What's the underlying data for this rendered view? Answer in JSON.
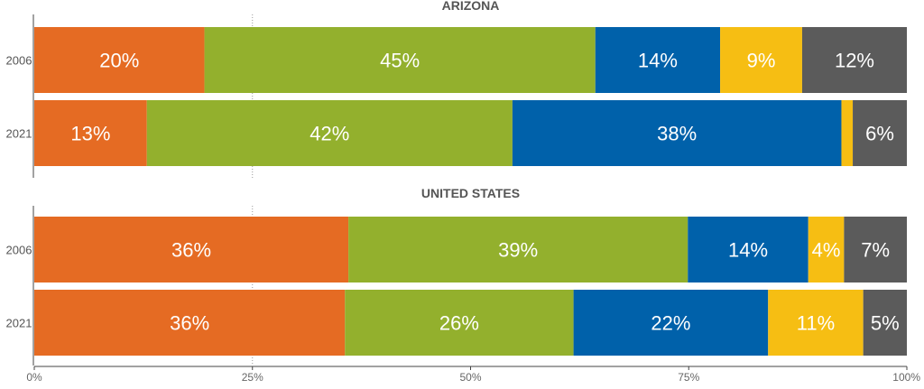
{
  "chart_data": {
    "type": "bar",
    "orientation": "horizontal",
    "stacked": true,
    "xlim": [
      0,
      100
    ],
    "x_ticks": [
      "0%",
      "25%",
      "50%",
      "75%",
      "100%"
    ],
    "colors": [
      "#E56B23",
      "#93B02D",
      "#0061AA",
      "#F6BE13",
      "#5B5B5B"
    ],
    "panels": [
      {
        "title": "ARIZONA",
        "rows": [
          {
            "label": "2006",
            "values": [
              19.5,
              44.8,
              14.3,
              9.4,
              12.0
            ],
            "labels": [
              "20%",
              "45%",
              "14%",
              "9%",
              "12%"
            ]
          },
          {
            "label": "2021",
            "values": [
              12.9,
              41.9,
              37.7,
              1.3,
              6.2
            ],
            "labels": [
              "13%",
              "42%",
              "38%",
              "",
              "6%"
            ]
          }
        ]
      },
      {
        "title": "UNITED STATES",
        "rows": [
          {
            "label": "2006",
            "values": [
              36.0,
              38.9,
              13.8,
              4.1,
              7.2
            ],
            "labels": [
              "36%",
              "39%",
              "14%",
              "4%",
              "7%"
            ]
          },
          {
            "label": "2021",
            "values": [
              35.6,
              26.2,
              22.3,
              10.9,
              5.0
            ],
            "labels": [
              "36%",
              "26%",
              "22%",
              "11%",
              "5%"
            ]
          }
        ]
      }
    ]
  }
}
